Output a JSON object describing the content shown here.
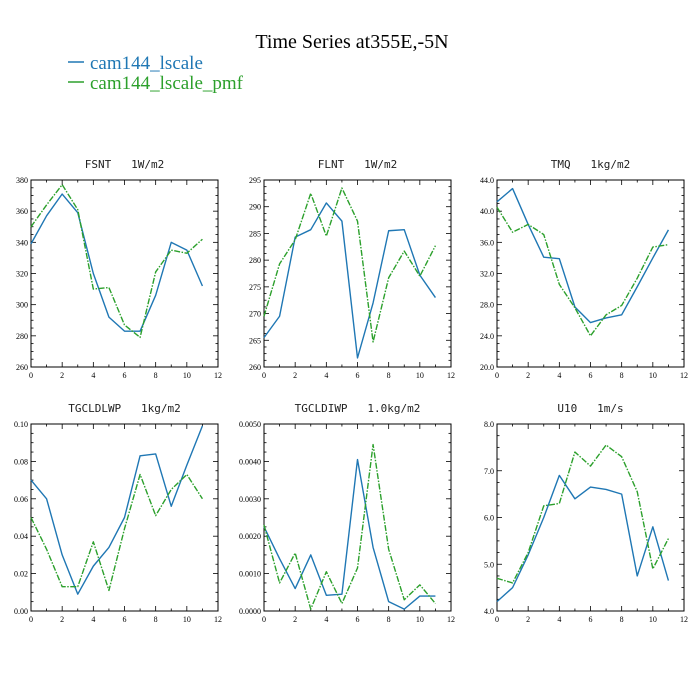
{
  "figure": {
    "title": "Time Series at355E,-5N",
    "legend": [
      {
        "name": "cam144_lscale",
        "color": "#1f77b4",
        "style": "solid"
      },
      {
        "name": "cam144_lscale_pmf",
        "color": "#2ca02c",
        "style": "dashed"
      }
    ]
  },
  "chart_data": [
    {
      "type": "line",
      "title": "FSNT   1W/m2",
      "x": [
        0,
        1,
        2,
        3,
        4,
        5,
        6,
        7,
        8,
        9,
        10,
        11
      ],
      "xlim": [
        0,
        12
      ],
      "xticks": [
        0,
        2,
        4,
        6,
        8,
        10,
        12
      ],
      "ylim": [
        260,
        380
      ],
      "yticks": [
        260,
        280,
        300,
        320,
        340,
        360,
        380
      ],
      "ytick_labels": [
        "260",
        "280",
        "300",
        "320",
        "340",
        "360",
        "380"
      ],
      "series": [
        {
          "name": "cam144_lscale",
          "values": [
            339,
            357,
            371,
            359,
            320,
            292,
            283,
            283,
            306,
            340,
            335,
            312
          ]
        },
        {
          "name": "cam144_lscale_pmf",
          "values": [
            350,
            364,
            377,
            361,
            310,
            311,
            287,
            279,
            321,
            335,
            333,
            342
          ]
        }
      ]
    },
    {
      "type": "line",
      "title": "FLNT   1W/m2",
      "x": [
        0,
        1,
        2,
        3,
        4,
        5,
        6,
        7,
        8,
        9,
        10,
        11
      ],
      "xlim": [
        0,
        12
      ],
      "xticks": [
        0,
        2,
        4,
        6,
        8,
        10,
        12
      ],
      "ylim": [
        260,
        295
      ],
      "yticks": [
        260,
        265,
        270,
        275,
        280,
        285,
        290,
        295
      ],
      "ytick_labels": [
        "260",
        "265",
        "270",
        "275",
        "280",
        "285",
        "290",
        "295"
      ],
      "series": [
        {
          "name": "cam144_lscale",
          "values": [
            265.5,
            269.5,
            284.3,
            285.7,
            290.7,
            287.3,
            261.7,
            272.0,
            285.5,
            285.7,
            277.2,
            273.0
          ]
        },
        {
          "name": "cam144_lscale_pmf",
          "values": [
            269.5,
            279.3,
            283.8,
            292.5,
            284.5,
            293.5,
            287.3,
            264.7,
            276.7,
            281.7,
            277.0,
            282.7
          ]
        }
      ]
    },
    {
      "type": "line",
      "title": "TMQ   1kg/m2",
      "x": [
        0,
        1,
        2,
        3,
        4,
        5,
        6,
        7,
        8,
        9,
        10,
        11
      ],
      "xlim": [
        0,
        12
      ],
      "xticks": [
        0,
        2,
        4,
        6,
        8,
        10,
        12
      ],
      "ylim": [
        20,
        44
      ],
      "yticks": [
        20,
        24,
        28,
        32,
        36,
        40,
        44
      ],
      "ytick_labels": [
        "20.0",
        "24.0",
        "28.0",
        "32.0",
        "36.0",
        "40.0",
        "44.0"
      ],
      "series": [
        {
          "name": "cam144_lscale",
          "values": [
            41.2,
            42.9,
            38.3,
            34.1,
            33.9,
            27.7,
            25.7,
            26.3,
            26.7,
            30.3,
            34.0,
            37.6
          ]
        },
        {
          "name": "cam144_lscale_pmf",
          "values": [
            40.5,
            37.3,
            38.3,
            37.0,
            30.6,
            27.6,
            24.0,
            26.7,
            27.9,
            31.4,
            35.4,
            35.7
          ]
        }
      ]
    },
    {
      "type": "line",
      "title": "TGCLDLWP   1kg/m2",
      "x": [
        0,
        1,
        2,
        3,
        4,
        5,
        6,
        7,
        8,
        9,
        10,
        11
      ],
      "xlim": [
        0,
        12
      ],
      "xticks": [
        0,
        2,
        4,
        6,
        8,
        10,
        12
      ],
      "ylim": [
        0,
        0.1
      ],
      "yticks": [
        0,
        0.02,
        0.04,
        0.06,
        0.08,
        0.1
      ],
      "ytick_labels": [
        "0.00",
        "0.02",
        "0.04",
        "0.06",
        "0.08",
        "0.10"
      ],
      "series": [
        {
          "name": "cam144_lscale",
          "values": [
            0.07,
            0.06,
            0.03,
            0.009,
            0.024,
            0.034,
            0.05,
            0.083,
            0.084,
            0.056,
            0.078,
            0.099
          ]
        },
        {
          "name": "cam144_lscale_pmf",
          "values": [
            0.05,
            0.033,
            0.013,
            0.013,
            0.037,
            0.011,
            0.044,
            0.073,
            0.051,
            0.065,
            0.073,
            0.06
          ]
        }
      ]
    },
    {
      "type": "line",
      "title": "TGCLDIWP   1.0kg/m2",
      "x": [
        0,
        1,
        2,
        3,
        4,
        5,
        6,
        7,
        8,
        9,
        10,
        11
      ],
      "xlim": [
        0,
        12
      ],
      "xticks": [
        0,
        2,
        4,
        6,
        8,
        10,
        12
      ],
      "ylim": [
        0,
        0.005
      ],
      "yticks": [
        0,
        0.001,
        0.002,
        0.003,
        0.004,
        0.005
      ],
      "ytick_labels": [
        "0.0000",
        "0.0010",
        "0.0020",
        "0.0030",
        "0.0040",
        "0.0050"
      ],
      "series": [
        {
          "name": "cam144_lscale",
          "values": [
            0.00225,
            0.0014,
            0.0006,
            0.0015,
            0.00042,
            0.00045,
            0.00405,
            0.0017,
            0.00025,
            5e-05,
            0.0004,
            0.0004
          ]
        },
        {
          "name": "cam144_lscale_pmf",
          "values": [
            0.0023,
            0.00075,
            0.00155,
            5e-05,
            0.00105,
            0.0002,
            0.00115,
            0.00445,
            0.00165,
            0.0003,
            0.0007,
            0.0002
          ]
        }
      ]
    },
    {
      "type": "line",
      "title": "U10   1m/s",
      "x": [
        0,
        1,
        2,
        3,
        4,
        5,
        6,
        7,
        8,
        9,
        10,
        11
      ],
      "xlim": [
        0,
        12
      ],
      "xticks": [
        0,
        2,
        4,
        6,
        8,
        10,
        12
      ],
      "ylim": [
        4,
        8
      ],
      "yticks": [
        4,
        5,
        6,
        7,
        8
      ],
      "ytick_labels": [
        "4.0",
        "5.0",
        "6.0",
        "7.0",
        "8.0"
      ],
      "series": [
        {
          "name": "cam144_lscale",
          "values": [
            4.2,
            4.5,
            5.2,
            6.0,
            6.9,
            6.4,
            6.65,
            6.6,
            6.5,
            4.75,
            5.8,
            4.65
          ]
        },
        {
          "name": "cam144_lscale_pmf",
          "values": [
            4.7,
            4.6,
            5.25,
            6.25,
            6.3,
            7.4,
            7.1,
            7.55,
            7.3,
            6.55,
            4.9,
            5.55
          ]
        }
      ]
    }
  ]
}
